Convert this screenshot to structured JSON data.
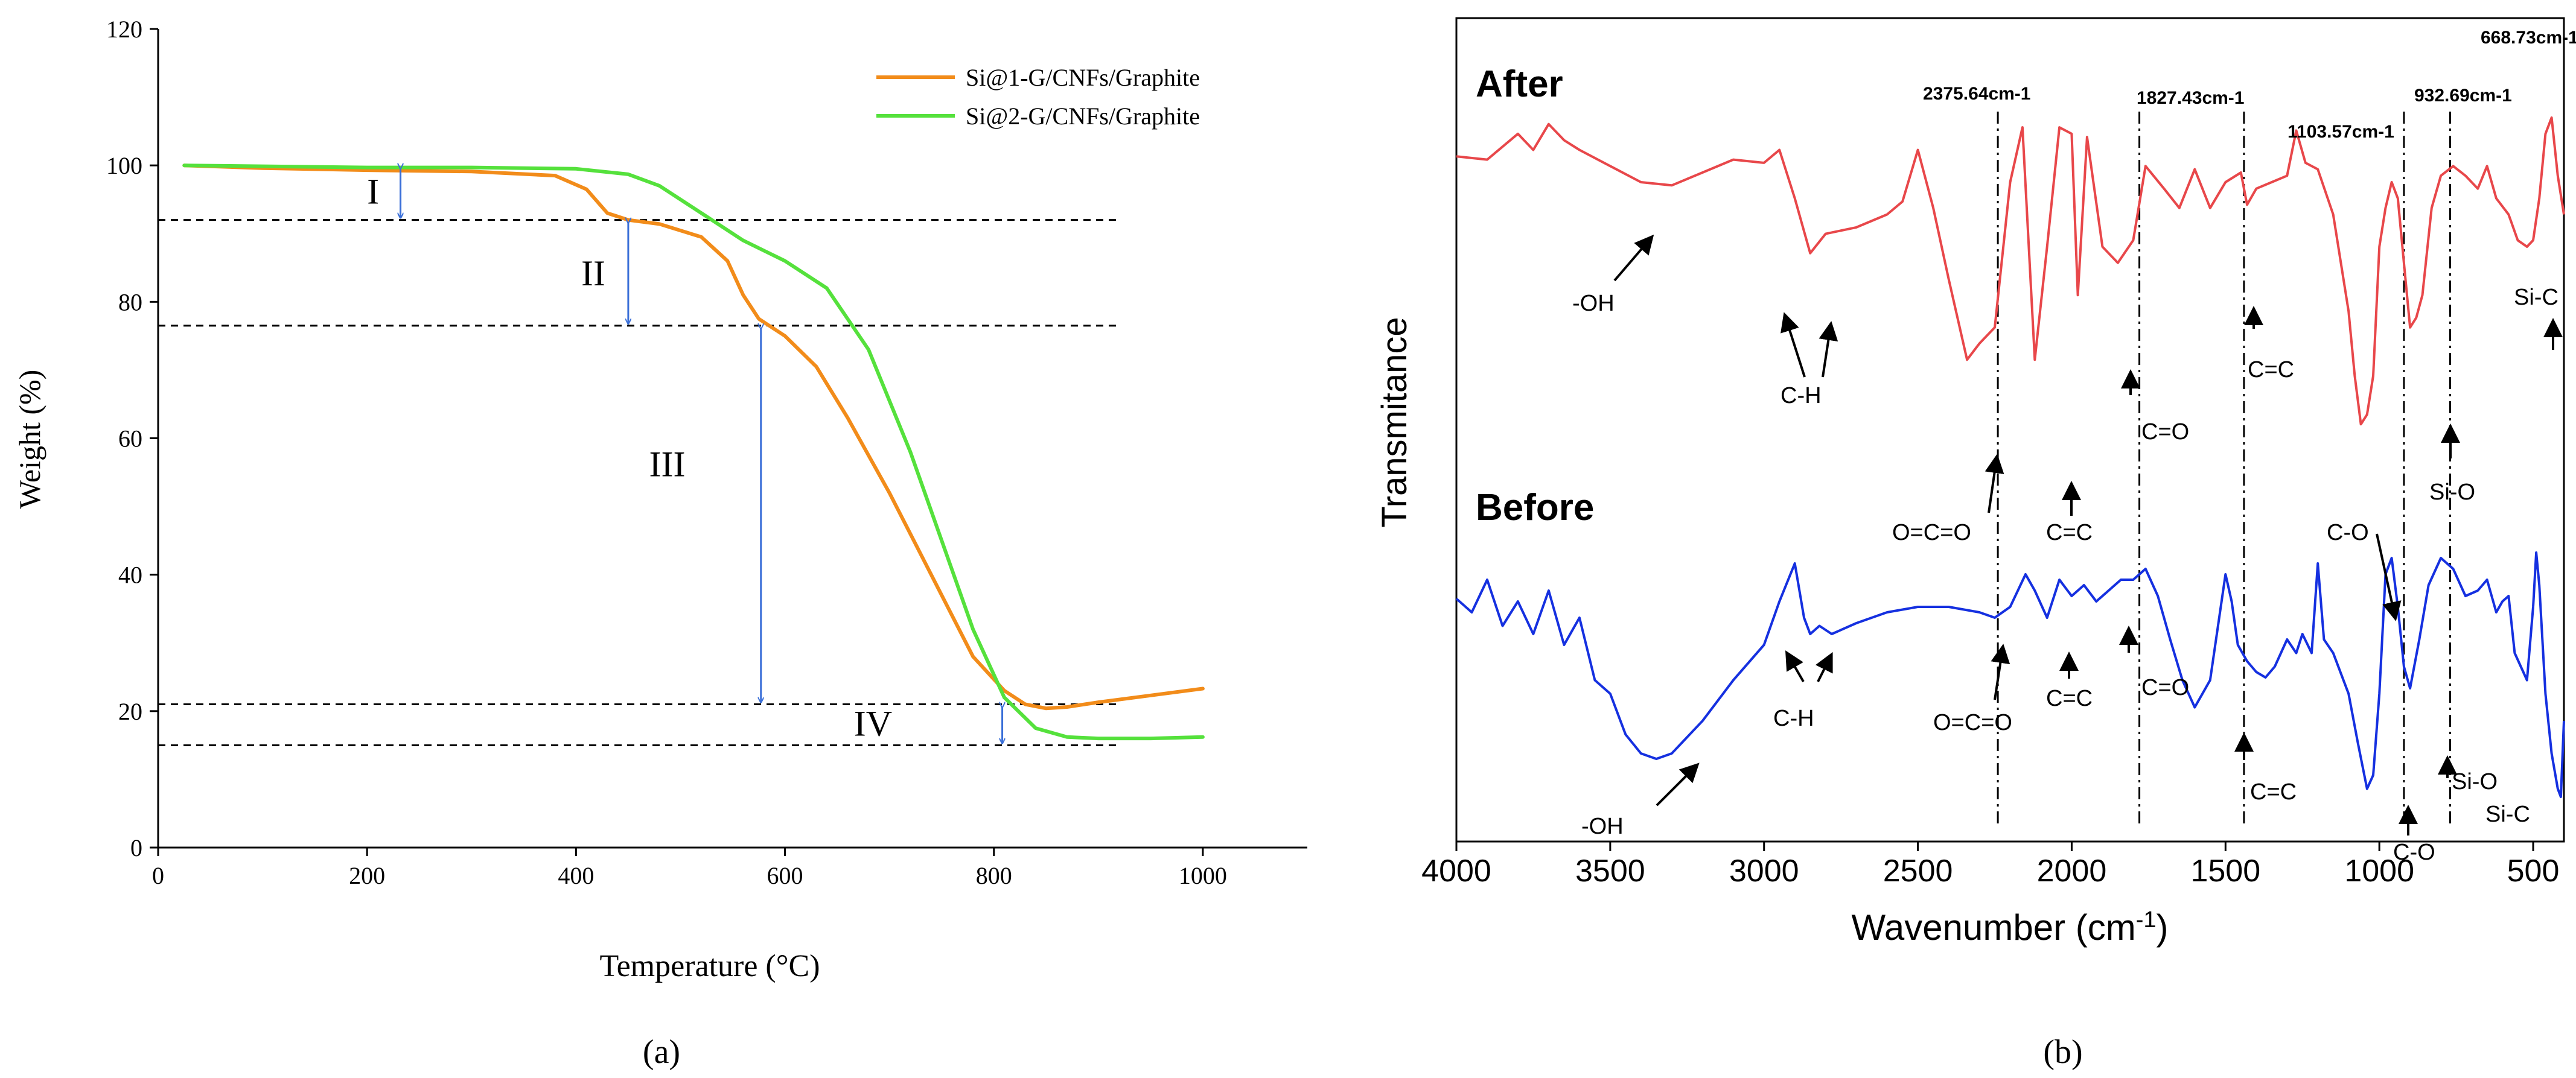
{
  "chart_data": [
    {
      "type": "line",
      "panel_label": "(a)",
      "xlabel": "Temperature (°C)",
      "ylabel": "Weight (%)",
      "xlim": [
        0,
        1100
      ],
      "ylim": [
        0,
        120
      ],
      "xticks": [
        "0",
        "200",
        "400",
        "600",
        "800",
        "1000"
      ],
      "xtick_values": [
        0,
        200,
        400,
        600,
        800,
        1000
      ],
      "yticks": [
        "0",
        "20",
        "40",
        "60",
        "80",
        "100",
        "120"
      ],
      "ytick_values": [
        0,
        20,
        40,
        60,
        80,
        100,
        120
      ],
      "grid": false,
      "legend_position": "top-right",
      "series": [
        {
          "name": "Si@1-G/CNFs/Graphite",
          "color": "#F28C1A",
          "x": [
            25,
            100,
            200,
            300,
            380,
            410,
            430,
            450,
            480,
            520,
            545,
            560,
            575,
            600,
            630,
            660,
            700,
            740,
            780,
            810,
            830,
            850,
            870,
            900,
            950,
            1000
          ],
          "y": [
            100,
            99.6,
            99.3,
            99.1,
            98.5,
            96.5,
            93.0,
            92.0,
            91.4,
            89.5,
            86.0,
            81.0,
            77.5,
            75.0,
            70.5,
            63.0,
            52.0,
            40.0,
            28.0,
            23.0,
            21.0,
            20.4,
            20.6,
            21.3,
            22.3,
            23.3
          ]
        },
        {
          "name": "Si@2-G/CNFs/Graphite",
          "color": "#55E13C",
          "x": [
            25,
            200,
            300,
            400,
            450,
            480,
            520,
            560,
            600,
            640,
            680,
            720,
            750,
            780,
            810,
            840,
            870,
            900,
            950,
            1000
          ],
          "y": [
            100,
            99.7,
            99.7,
            99.5,
            98.7,
            97.0,
            93.0,
            89.0,
            86.0,
            82.0,
            73.0,
            58.0,
            45.0,
            32.0,
            22.0,
            17.5,
            16.2,
            16.0,
            16.0,
            16.2
          ]
        }
      ],
      "reference_levels": [
        92,
        76.5,
        21,
        15
      ],
      "annotations": [
        {
          "text": "I",
          "x": 200,
          "y": 96,
          "arrow_x": 232,
          "arrow_from": 100,
          "arrow_to": 92
        },
        {
          "text": "II",
          "x": 405,
          "y": 84,
          "arrow_x": 450,
          "arrow_from": 92,
          "arrow_to": 76.5
        },
        {
          "text": "III",
          "x": 470,
          "y": 56,
          "arrow_x": 577,
          "arrow_from": 76.5,
          "arrow_to": 21
        },
        {
          "text": "IV",
          "x": 666,
          "y": 18,
          "arrow_x": 808,
          "arrow_from": 21,
          "arrow_to": 15
        }
      ]
    },
    {
      "type": "line",
      "panel_label": "(b)",
      "xlabel": "Wavenumber (cm-1)",
      "ylabel": "Transmitance",
      "xlim": [
        4000,
        400
      ],
      "xticks": [
        "4000",
        "3500",
        "3000",
        "2500",
        "2000",
        "1500",
        "1000",
        "500"
      ],
      "xtick_values": [
        4000,
        3500,
        3000,
        2500,
        2000,
        1500,
        1000,
        500
      ],
      "yticks": [],
      "grid": false,
      "series": [
        {
          "name": "After",
          "color": "#E8474A",
          "x": [
            4000,
            3900,
            3800,
            3750,
            3700,
            3650,
            3600,
            3500,
            3400,
            3300,
            3200,
            3100,
            3000,
            2950,
            2900,
            2850,
            2800,
            2700,
            2600,
            2550,
            2500,
            2450,
            2400,
            2340,
            2300,
            2250,
            2200,
            2160,
            2120,
            2080,
            2040,
            2000,
            1980,
            1950,
            1900,
            1850,
            1800,
            1760,
            1700,
            1650,
            1600,
            1550,
            1500,
            1450,
            1430,
            1400,
            1350,
            1300,
            1270,
            1240,
            1200,
            1150,
            1100,
            1080,
            1060,
            1040,
            1020,
            1000,
            980,
            960,
            940,
            920,
            900,
            880,
            860,
            830,
            800,
            760,
            720,
            680,
            650,
            620,
            580,
            550,
            520,
            500,
            480,
            460,
            440,
            420,
            400
          ],
          "y": [
            0.88,
            0.87,
            0.95,
            0.9,
            0.98,
            0.93,
            0.9,
            0.85,
            0.8,
            0.79,
            0.83,
            0.87,
            0.86,
            0.9,
            0.75,
            0.58,
            0.64,
            0.66,
            0.7,
            0.74,
            0.9,
            0.72,
            0.5,
            0.25,
            0.3,
            0.35,
            0.8,
            0.97,
            0.25,
            0.6,
            0.97,
            0.95,
            0.45,
            0.94,
            0.6,
            0.55,
            0.62,
            0.85,
            0.78,
            0.72,
            0.84,
            0.72,
            0.8,
            0.83,
            0.73,
            0.78,
            0.8,
            0.82,
            0.96,
            0.86,
            0.84,
            0.7,
            0.4,
            0.2,
            0.05,
            0.08,
            0.2,
            0.6,
            0.72,
            0.8,
            0.75,
            0.55,
            0.35,
            0.38,
            0.45,
            0.72,
            0.82,
            0.85,
            0.82,
            0.78,
            0.85,
            0.75,
            0.7,
            0.62,
            0.6,
            0.62,
            0.75,
            0.95,
            1.0,
            0.82,
            0.7
          ]
        },
        {
          "name": "Before",
          "color": "#1530E0",
          "x": [
            4000,
            3950,
            3900,
            3850,
            3800,
            3750,
            3700,
            3650,
            3600,
            3550,
            3500,
            3450,
            3400,
            3350,
            3300,
            3200,
            3100,
            3000,
            2950,
            2900,
            2870,
            2850,
            2820,
            2780,
            2700,
            2600,
            2500,
            2400,
            2300,
            2250,
            2200,
            2150,
            2120,
            2080,
            2040,
            2000,
            1960,
            1920,
            1880,
            1840,
            1800,
            1760,
            1720,
            1680,
            1640,
            1600,
            1550,
            1500,
            1480,
            1460,
            1430,
            1400,
            1370,
            1340,
            1300,
            1270,
            1250,
            1220,
            1200,
            1180,
            1150,
            1100,
            1070,
            1040,
            1020,
            1000,
            980,
            960,
            940,
            920,
            900,
            870,
            840,
            800,
            760,
            720,
            680,
            650,
            620,
            600,
            580,
            560,
            540,
            520,
            500,
            490,
            480,
            460,
            440,
            420,
            410,
            400
          ],
          "y": [
            0.75,
            0.7,
            0.82,
            0.65,
            0.74,
            0.62,
            0.78,
            0.58,
            0.68,
            0.45,
            0.4,
            0.25,
            0.18,
            0.16,
            0.18,
            0.3,
            0.45,
            0.58,
            0.74,
            0.88,
            0.68,
            0.62,
            0.65,
            0.62,
            0.66,
            0.7,
            0.72,
            0.72,
            0.7,
            0.68,
            0.72,
            0.84,
            0.78,
            0.68,
            0.82,
            0.76,
            0.8,
            0.74,
            0.78,
            0.82,
            0.82,
            0.86,
            0.76,
            0.6,
            0.45,
            0.35,
            0.45,
            0.84,
            0.74,
            0.58,
            0.52,
            0.48,
            0.46,
            0.5,
            0.6,
            0.55,
            0.62,
            0.55,
            0.88,
            0.6,
            0.55,
            0.4,
            0.22,
            0.05,
            0.1,
            0.4,
            0.84,
            0.9,
            0.72,
            0.5,
            0.42,
            0.6,
            0.8,
            0.9,
            0.86,
            0.76,
            0.78,
            0.82,
            0.7,
            0.74,
            0.76,
            0.55,
            0.5,
            0.45,
            0.72,
            0.92,
            0.8,
            0.4,
            0.18,
            0.05,
            0.02,
            0.3
          ]
        }
      ],
      "trace_labels": [
        "After",
        "Before"
      ],
      "top_peak_labels": [
        {
          "text": "2375.64cm-1",
          "x": 2375
        },
        {
          "text": "1827.43cm-1",
          "x": 1827
        },
        {
          "text": "1103.57cm-1",
          "x": 1103
        },
        {
          "text": "932.69cm-1",
          "x": 932
        },
        {
          "text": "668.73cm-1",
          "x": 668
        }
      ],
      "dashdot_lines": [
        2240,
        1780,
        1440,
        920,
        770
      ],
      "bond_labels": [
        "-OH",
        "C-H",
        "O=C=O",
        "C=O",
        "C=C",
        "C=C",
        "C-O",
        "Si-O",
        "Si-C",
        "-OH",
        "C-H",
        "O=C=O",
        "C=C",
        "C=O",
        "C=C",
        "C-O",
        "Si-O",
        "Si-C"
      ]
    }
  ]
}
